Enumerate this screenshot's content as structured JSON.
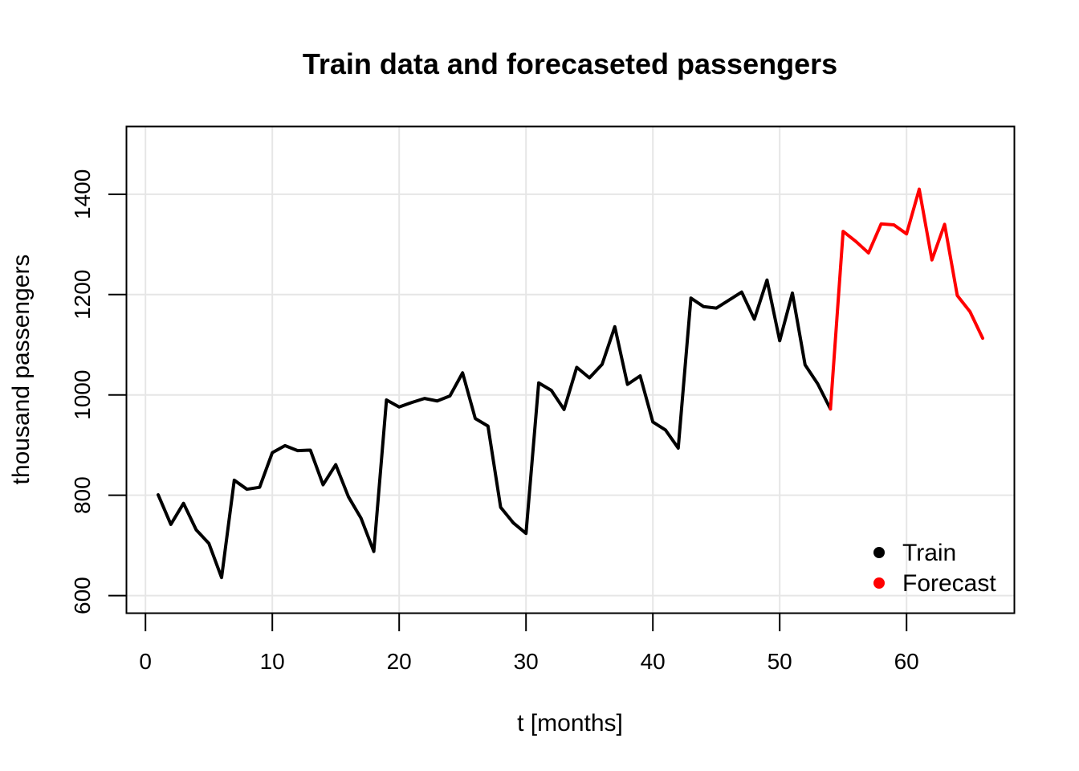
{
  "chart_data": {
    "type": "line",
    "title": "Train data and forecaseted passengers",
    "xlabel": "t [months]",
    "ylabel": "thousand passengers",
    "xlim": [
      -1.5,
      68.5
    ],
    "ylim": [
      565,
      1535
    ],
    "xticks": [
      0,
      10,
      20,
      30,
      40,
      50,
      60
    ],
    "yticks": [
      600,
      800,
      1000,
      1200,
      1400
    ],
    "grid": true,
    "legend_position": "bottom-right",
    "series": [
      {
        "name": "Train",
        "color": "#000000",
        "x": [
          1,
          2,
          3,
          4,
          5,
          6,
          7,
          8,
          9,
          10,
          11,
          12,
          13,
          14,
          15,
          16,
          17,
          18,
          19,
          20,
          21,
          22,
          23,
          24,
          25,
          26,
          27,
          28,
          29,
          30,
          31,
          32,
          33,
          34,
          35,
          36,
          37,
          38,
          39,
          40,
          41,
          42,
          43,
          44,
          45,
          46,
          47,
          48,
          49,
          50,
          51,
          52,
          53,
          54
        ],
        "y": [
          801,
          742,
          784,
          731,
          704,
          636,
          830,
          812,
          816,
          885,
          899,
          889,
          890,
          821,
          861,
          797,
          754,
          688,
          990,
          976,
          985,
          993,
          988,
          998,
          1044,
          953,
          938,
          776,
          745,
          724,
          1024,
          1009,
          971,
          1055,
          1034,
          1061,
          1136,
          1021,
          1038,
          946,
          930,
          894,
          1193,
          1176,
          1173,
          1189,
          1205,
          1151,
          1229,
          1108,
          1203,
          1060,
          1022,
          972
        ]
      },
      {
        "name": "Forecast",
        "color": "#ff0000",
        "x": [
          54,
          55,
          56,
          57,
          58,
          59,
          60,
          61,
          62,
          63,
          64,
          65,
          66
        ],
        "y": [
          972,
          1326,
          1306,
          1283,
          1341,
          1339,
          1321,
          1410,
          1269,
          1340,
          1198,
          1166,
          1113
        ]
      }
    ]
  }
}
